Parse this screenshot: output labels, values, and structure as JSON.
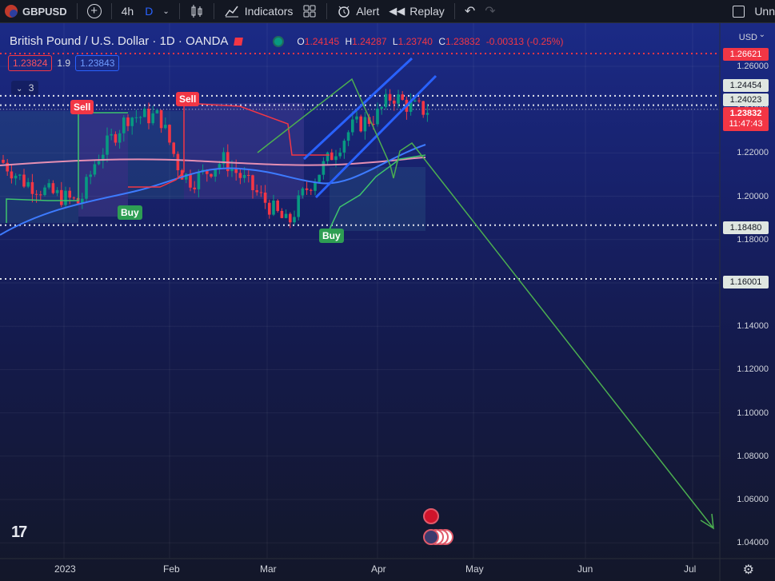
{
  "toolbar": {
    "symbol": "GBPUSD",
    "interval": "4h",
    "interval_alt": "D",
    "indicators_label": "Indicators",
    "alert_label": "Alert",
    "replay_label": "Replay",
    "trailing_text": "Unn"
  },
  "legend": {
    "title": "British Pound / U.S. Dollar · 1D · OANDA",
    "open_label": "O",
    "open": "1.24145",
    "high_label": "H",
    "high": "1.24287",
    "low_label": "L",
    "low": "1.23740",
    "close_label": "C",
    "close": "1.23832",
    "change": "-0.00313 (-0.25%)",
    "bid": "1.23824",
    "spread": "1.9",
    "ask": "1.23843",
    "indicators_count": "3"
  },
  "price_axis": {
    "currency": "USD",
    "ticks": [
      "1.26000",
      "1.24000",
      "1.22000",
      "1.20000",
      "1.18000",
      "1.16000",
      "1.14000",
      "1.12000",
      "1.10000",
      "1.08000",
      "1.06000",
      "1.04000"
    ],
    "tags": {
      "level_top": "1.26621",
      "level_a": "1.24454",
      "level_b": "1.24023",
      "last_price": "1.23832",
      "countdown": "11:47:43",
      "level_c": "1.18480",
      "level_d": "1.16001"
    }
  },
  "time_axis": {
    "labels": [
      "2023",
      "Feb",
      "Mar",
      "Apr",
      "May",
      "Jun",
      "Jul"
    ]
  },
  "signals": {
    "sell_label": "Sell",
    "buy_label": "Buy"
  },
  "colors": {
    "bull": "#089981",
    "bear": "#f23645",
    "accent": "#2962ff",
    "green_line": "#4caf50"
  }
}
